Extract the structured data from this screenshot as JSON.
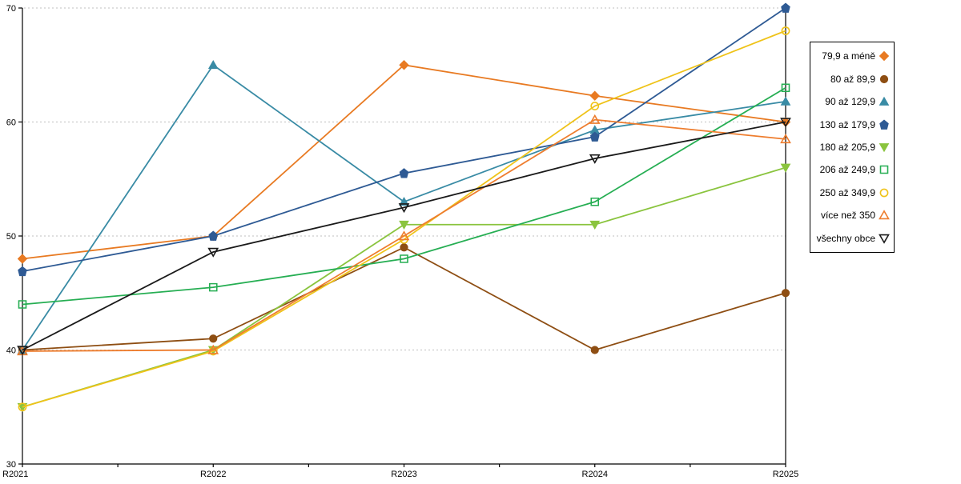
{
  "chart_data": {
    "type": "line",
    "title": "",
    "xlabel": "",
    "ylabel": "",
    "categories": [
      "R2021",
      "R2022",
      "R2023",
      "R2024",
      "R2025"
    ],
    "y_ticks": [
      30,
      40,
      50,
      60,
      70
    ],
    "ylim": [
      30,
      70
    ],
    "grid": "horizontal dashed at 40,50,60,70",
    "legend_position": "right",
    "colors": {
      "axis": "#000000",
      "gridline": "#BFBFBF",
      "background": "#FFFFFF"
    },
    "series": [
      {
        "name": "79,9 a méně",
        "color": "#E87A22",
        "marker": "diamond",
        "filled": true,
        "values": [
          48,
          50,
          65,
          62.3,
          60
        ]
      },
      {
        "name": "80 až 89,9",
        "color": "#8E4E13",
        "marker": "circle",
        "filled": true,
        "values": [
          40,
          41,
          49,
          40,
          45
        ]
      },
      {
        "name": "90 až 129,9",
        "color": "#398BA5",
        "marker": "triangle-up",
        "filled": true,
        "values": [
          40,
          65,
          53,
          59.3,
          61.8
        ]
      },
      {
        "name": "130 až 179,9",
        "color": "#2E5A94",
        "marker": "pentagon",
        "filled": true,
        "values": [
          46.9,
          50,
          55.5,
          58.7,
          70
        ]
      },
      {
        "name": "180 až 205,9",
        "color": "#8AC43E",
        "marker": "triangle-down",
        "filled": true,
        "values": [
          35,
          40,
          51,
          51,
          56
        ]
      },
      {
        "name": "206 až 249,9",
        "color": "#26AE53",
        "marker": "square",
        "filled": false,
        "values": [
          44,
          45.5,
          48,
          53,
          63
        ]
      },
      {
        "name": "250 až 349,9",
        "color": "#EFC319",
        "marker": "circle",
        "filled": false,
        "values": [
          35,
          39.9,
          49.7,
          61.4,
          68
        ]
      },
      {
        "name": "více než 350",
        "color": "#EE7D2E",
        "marker": "triangle-up",
        "filled": false,
        "values": [
          39.9,
          40,
          50,
          60.2,
          58.5
        ]
      },
      {
        "name": "všechny obce",
        "color": "#1A1A1A",
        "marker": "triangle-down",
        "filled": false,
        "values": [
          40,
          48.6,
          52.5,
          56.8,
          60
        ]
      }
    ]
  }
}
